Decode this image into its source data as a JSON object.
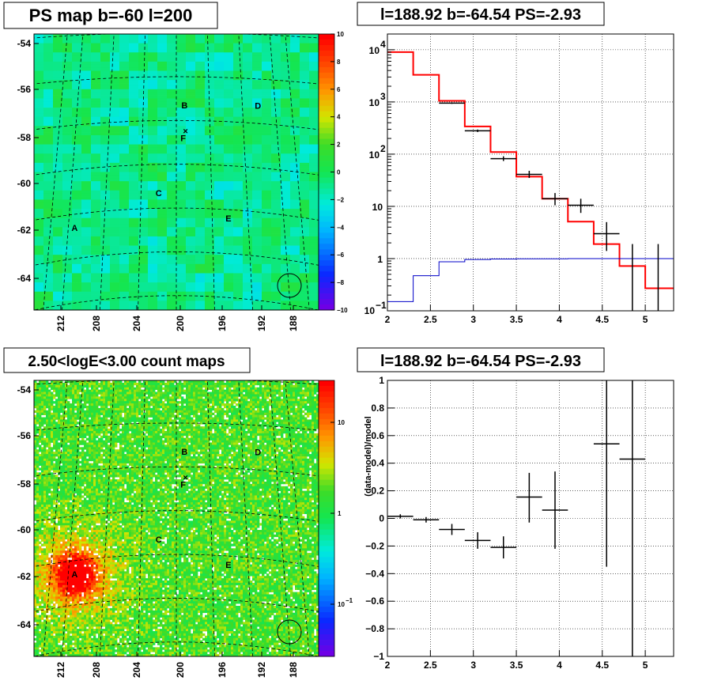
{
  "colors": {
    "model_line": "#ff0000",
    "data_marker": "#000000",
    "background_line": "#0000c8",
    "grid": "#000000"
  },
  "chart_data": [
    {
      "id": "ps-map",
      "type": "heatmap",
      "title": "PS map b=-60 l=200",
      "x_ticks": [
        "212",
        "208",
        "204",
        "200",
        "196",
        "192",
        "188"
      ],
      "y_ticks": [
        "-54",
        "-56",
        "-58",
        "-60",
        "-62",
        "-64"
      ],
      "colorbar_ticks": [
        "10",
        "8",
        "6",
        "4",
        "2",
        "0",
        "−2",
        "−4",
        "−6",
        "−8",
        "−10"
      ],
      "zlim": [
        -10,
        10
      ],
      "value_range_typical": [
        -3,
        1
      ],
      "sources": [
        {
          "label": "A",
          "l": 211.3,
          "b": -62.0
        },
        {
          "label": "B",
          "l": 199.0,
          "b": -56.7
        },
        {
          "label": "C",
          "l": 202.0,
          "b": -60.7
        },
        {
          "label": "D",
          "l": 190.1,
          "b": -56.6
        },
        {
          "label": "E",
          "l": 194.2,
          "b": -61.8
        },
        {
          "label": "F",
          "l": 199.2,
          "b": -58.2
        }
      ],
      "roi_circle": {
        "l": 188.9,
        "b": -64.5
      }
    },
    {
      "id": "spectrum",
      "type": "line",
      "title": "l=188.92 b=-64.54 PS=-2.93",
      "x_ticks": [
        "2",
        "2.5",
        "3",
        "3.5",
        "4",
        "4.5",
        "5"
      ],
      "y_ticks": [
        "10",
        "1",
        "10"
      ],
      "y_ticks_sup": [
        "4",
        "3",
        "2"
      ],
      "y_ticks_sup_minus": [
        "−1"
      ],
      "xlim": [
        2.0,
        5.33
      ],
      "ylim": [
        0.1,
        20000
      ],
      "yscale": "log",
      "grid": true,
      "series": [
        {
          "edges": [
            2.0,
            2.3,
            2.6,
            2.9,
            3.2,
            3.5,
            3.8,
            4.1,
            4.4,
            4.7,
            5.0,
            5.33
          ],
          "values": [
            9000,
            3300,
            1050,
            340,
            110,
            37,
            14,
            5.1,
            1.9,
            0.72,
            0.27
          ],
          "color": "#ff0000"
        },
        {
          "edges": [
            2.0,
            2.3,
            2.6,
            2.9,
            3.2,
            3.5,
            3.8,
            4.1,
            4.4,
            4.7,
            5.0,
            5.33
          ],
          "values": [
            0.15,
            0.47,
            0.87,
            0.96,
            0.98,
            0.99,
            0.99,
            1.0,
            1.0,
            1.0,
            1.0
          ],
          "color": "#0000c8"
        }
      ],
      "points": [
        {
          "x": 2.75,
          "y": 950,
          "xerr": 0.15,
          "ylo": 920,
          "yhi": 980
        },
        {
          "x": 3.05,
          "y": 280,
          "xerr": 0.15,
          "ylo": 265,
          "yhi": 296
        },
        {
          "x": 3.35,
          "y": 82,
          "xerr": 0.15,
          "ylo": 74,
          "yhi": 91
        },
        {
          "x": 3.65,
          "y": 41,
          "xerr": 0.15,
          "ylo": 35,
          "yhi": 48
        },
        {
          "x": 3.95,
          "y": 14,
          "xerr": 0.15,
          "ylo": 10.5,
          "yhi": 18
        },
        {
          "x": 4.25,
          "y": 10.5,
          "xerr": 0.15,
          "ylo": 7.5,
          "yhi": 14
        },
        {
          "x": 4.55,
          "y": 3.0,
          "xerr": 0.15,
          "ylo": 1.4,
          "yhi": 5.0
        },
        {
          "x": 4.85,
          "y": 0.1,
          "xerr": 0.0,
          "ylo": 0.1,
          "yhi": 1.9
        },
        {
          "x": 5.15,
          "y": 0.1,
          "xerr": 0.0,
          "ylo": 0.1,
          "yhi": 1.9
        }
      ]
    },
    {
      "id": "count-map",
      "type": "heatmap",
      "title": "2.50<logE<3.00 count maps",
      "x_ticks": [
        "212",
        "208",
        "204",
        "200",
        "196",
        "192",
        "188"
      ],
      "y_ticks": [
        "-54",
        "-56",
        "-58",
        "-60",
        "-62",
        "-64"
      ],
      "colorbar_ticks": [
        "10",
        "1",
        "10"
      ],
      "colorbar_ticks_sup": [
        "−1"
      ],
      "zscale": "log",
      "sources": [
        {
          "label": "A",
          "l": 211.3,
          "b": -62.0
        },
        {
          "label": "B",
          "l": 199.0,
          "b": -56.7
        },
        {
          "label": "C",
          "l": 202.0,
          "b": -60.7
        },
        {
          "label": "D",
          "l": 190.1,
          "b": -56.6
        },
        {
          "label": "E",
          "l": 194.2,
          "b": -61.8
        },
        {
          "label": "F",
          "l": 199.2,
          "b": -58.2
        }
      ],
      "roi_circle": {
        "l": 188.9,
        "b": -64.5
      }
    },
    {
      "id": "residuals",
      "type": "scatter",
      "title": "l=188.92 b=-64.54 PS=-2.93",
      "ylabel": "(data-model)/model",
      "x_ticks": [
        "2",
        "2.5",
        "3",
        "3.5",
        "4",
        "4.5",
        "5"
      ],
      "y_ticks": [
        "1",
        "0.8",
        "0.6",
        "0.4",
        "0.2",
        "0",
        "−0.2",
        "−0.4",
        "−0.6",
        "−0.8",
        "−1"
      ],
      "xlim": [
        2.0,
        5.33
      ],
      "ylim": [
        -1,
        1
      ],
      "grid": true,
      "points": [
        {
          "x": 2.15,
          "y": 0.015,
          "xerr": 0.15,
          "ylo": 0.0,
          "yhi": 0.03
        },
        {
          "x": 2.45,
          "y": -0.01,
          "xerr": 0.15,
          "ylo": -0.03,
          "yhi": 0.01
        },
        {
          "x": 2.75,
          "y": -0.08,
          "xerr": 0.15,
          "ylo": -0.12,
          "yhi": -0.04
        },
        {
          "x": 3.05,
          "y": -0.16,
          "xerr": 0.15,
          "ylo": -0.22,
          "yhi": -0.1
        },
        {
          "x": 3.35,
          "y": -0.21,
          "xerr": 0.15,
          "ylo": -0.29,
          "yhi": -0.13
        },
        {
          "x": 3.65,
          "y": 0.155,
          "xerr": 0.15,
          "ylo": -0.03,
          "yhi": 0.33
        },
        {
          "x": 3.95,
          "y": 0.06,
          "xerr": 0.15,
          "ylo": -0.22,
          "yhi": 0.34
        },
        {
          "x": 4.55,
          "y": 0.54,
          "xerr": 0.15,
          "ylo": -0.35,
          "yhi": 1.0
        },
        {
          "x": 4.85,
          "y": 0.43,
          "xerr": 0.15,
          "ylo": -1.0,
          "yhi": 1.0
        }
      ]
    }
  ]
}
